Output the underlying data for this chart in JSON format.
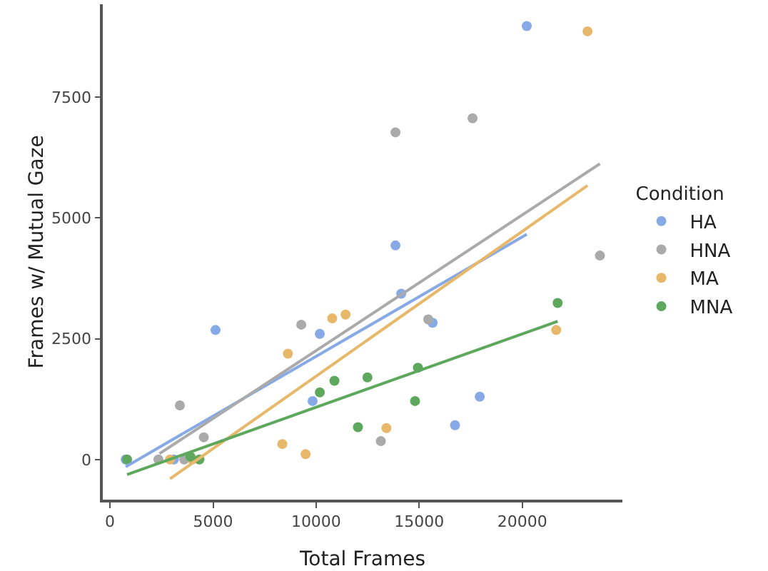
{
  "chart_data": {
    "type": "scatter",
    "xlabel": "Total Frames",
    "ylabel": "Frames w/ Mutual Gaze",
    "legend_title": "Condition",
    "legend": "right",
    "grid": false,
    "xlim": [
      -350,
      24860
    ],
    "ylim": [
      -830,
      9420
    ],
    "xticks": [
      0,
      5000,
      10000,
      15000,
      20000
    ],
    "yticks": [
      0,
      2500,
      5000,
      7500
    ],
    "series": [
      {
        "name": "HA",
        "color": "#87aae6",
        "marker": "circle",
        "x": [
          760,
          3100,
          5120,
          9830,
          10180,
          13850,
          14130,
          15650,
          16740,
          17940,
          20220
        ],
        "values": [
          0,
          0,
          2680,
          1210,
          2600,
          4430,
          3430,
          2830,
          710,
          1300,
          8970
        ]
      },
      {
        "name": "HNA",
        "color": "#aaaaaa",
        "marker": "circle",
        "x": [
          2350,
          3390,
          3600,
          4550,
          9280,
          13140,
          13850,
          15440,
          17590,
          23770
        ],
        "values": [
          0,
          1120,
          0,
          460,
          2790,
          380,
          6770,
          2900,
          7060,
          4220
        ]
      },
      {
        "name": "MA",
        "color": "#e8b86a",
        "marker": "circle",
        "x": [
          2910,
          3440,
          4000,
          8360,
          8630,
          9490,
          10780,
          11430,
          13410,
          21650,
          23170
        ],
        "values": [
          0,
          null,
          0,
          320,
          2190,
          110,
          2920,
          3000,
          650,
          2680,
          8860
        ]
      },
      {
        "name": "MNA",
        "color": "#5ea85e",
        "marker": "circle",
        "x": [
          830,
          3670,
          3900,
          4340,
          10180,
          10890,
          12030,
          12490,
          14800,
          14940,
          21720
        ],
        "values": [
          0,
          null,
          60,
          0,
          1390,
          1630,
          670,
          1700,
          1210,
          1900,
          3240
        ]
      },
      {
        "type": "line",
        "color": "#87aae6",
        "x": [
          760,
          20220
        ],
        "values": [
          -150,
          4660
        ]
      },
      {
        "type": "line",
        "color": "#aaaaaa",
        "x": [
          2400,
          23770
        ],
        "values": [
          120,
          6120
        ]
      },
      {
        "type": "line",
        "color": "#e8b86a",
        "x": [
          2910,
          23170
        ],
        "values": [
          -400,
          5670
        ]
      },
      {
        "type": "line",
        "color": "#5ea85e",
        "x": [
          830,
          21720
        ],
        "values": [
          -310,
          2860
        ]
      }
    ]
  }
}
